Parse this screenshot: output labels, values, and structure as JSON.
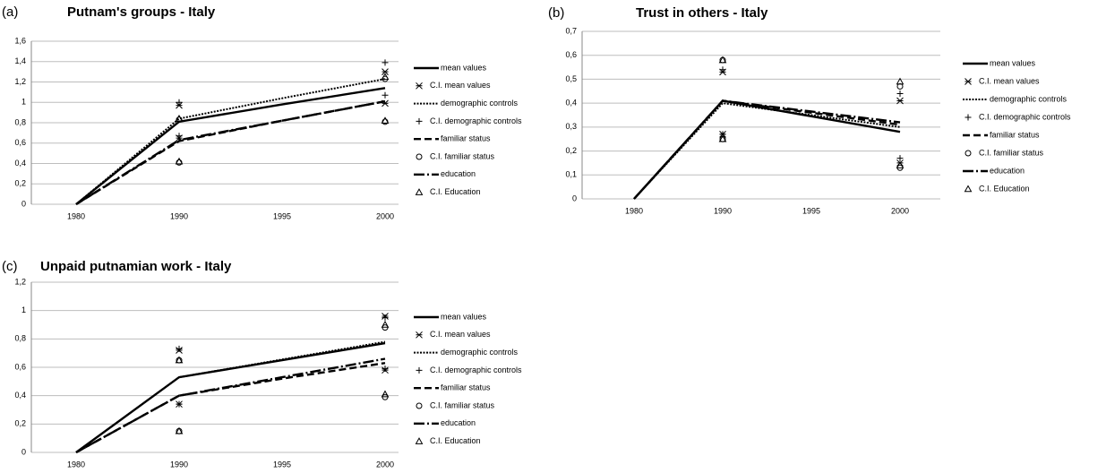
{
  "chart_data": [
    {
      "type": "line",
      "panel_label": "(a)",
      "title": "Putnam's groups - Italy",
      "categories": [
        "1980",
        "1990",
        "1995",
        "2000"
      ],
      "ylim": [
        0,
        1.6
      ],
      "yticks": [
        0,
        {
          "value": 0.2,
          "label": "0,2"
        },
        {
          "value": 0.4,
          "label": "0,4"
        },
        {
          "value": 0.6,
          "label": "0,6"
        },
        {
          "value": 0.8,
          "label": "0,8"
        },
        1,
        {
          "value": 1.2,
          "label": "1,2"
        },
        {
          "value": 1.4,
          "label": "1,4"
        },
        {
          "value": 1.6,
          "label": "1,6"
        }
      ],
      "grid": true,
      "series": [
        {
          "name": "mean values",
          "color": "#000000",
          "line": "solid",
          "values": [
            0,
            0.81,
            0.98,
            1.14
          ]
        },
        {
          "name": "C.I. mean values",
          "color": "#000000",
          "marker": "asterisk",
          "values": [
            null,
            0.97,
            null,
            1.3
          ],
          "lower": [
            null,
            0.65,
            null,
            0.99
          ]
        },
        {
          "name": "demographic controls",
          "color": "#000000",
          "line": "dotted",
          "values": [
            0,
            0.84,
            1.04,
            1.23
          ]
        },
        {
          "name": "C.I. demographic controls",
          "color": "#000000",
          "marker": "plus",
          "values": [
            null,
            1.0,
            null,
            1.39
          ],
          "lower": [
            null,
            0.67,
            null,
            1.07
          ]
        },
        {
          "name": "familiar status",
          "color": "#000000",
          "line": "dashed",
          "values": [
            0,
            0.62,
            0.82,
            1.01
          ]
        },
        {
          "name": "C.I. familiar status",
          "color": "#000000",
          "marker": "circle",
          "values": [
            null,
            0.83,
            null,
            1.23
          ],
          "lower": [
            null,
            0.41,
            null,
            0.81
          ]
        },
        {
          "name": "education",
          "color": "#000000",
          "line": "dashdot",
          "values": [
            0,
            0.63,
            0.82,
            1.01
          ]
        },
        {
          "name": "C.I. Education",
          "color": "#000000",
          "marker": "triangle",
          "values": [
            null,
            0.84,
            null,
            1.25
          ],
          "lower": [
            null,
            0.42,
            null,
            0.82
          ]
        }
      ]
    },
    {
      "type": "line",
      "panel_label": "(b)",
      "title": "Trust in others - Italy",
      "categories": [
        "1980",
        "1990",
        "1995",
        "2000"
      ],
      "ylim": [
        0,
        0.7
      ],
      "yticks": [
        0,
        {
          "value": 0.1,
          "label": "0,1"
        },
        {
          "value": 0.2,
          "label": "0,2"
        },
        {
          "value": 0.3,
          "label": "0,3"
        },
        {
          "value": 0.4,
          "label": "0,4"
        },
        {
          "value": 0.5,
          "label": "0,5"
        },
        {
          "value": 0.6,
          "label": "0,6"
        },
        {
          "value": 0.7,
          "label": "0,7"
        }
      ],
      "grid": true,
      "series": [
        {
          "name": "mean values",
          "color": "#000000",
          "line": "solid",
          "values": [
            0,
            0.41,
            0.345,
            0.28
          ]
        },
        {
          "name": "C.I. mean values",
          "color": "#000000",
          "marker": "asterisk",
          "values": [
            null,
            0.53,
            null,
            0.41
          ],
          "lower": [
            null,
            0.27,
            null,
            0.15
          ]
        },
        {
          "name": "demographic controls",
          "color": "#000000",
          "line": "dotted",
          "values": [
            0,
            0.4,
            0.35,
            0.3
          ]
        },
        {
          "name": "C.I. demographic controls",
          "color": "#000000",
          "marker": "plus",
          "values": [
            null,
            0.54,
            null,
            0.44
          ],
          "lower": [
            null,
            0.27,
            null,
            0.17
          ]
        },
        {
          "name": "familiar status",
          "color": "#000000",
          "line": "dashed",
          "values": [
            0,
            0.41,
            0.36,
            0.31
          ]
        },
        {
          "name": "C.I. familiar status",
          "color": "#000000",
          "marker": "circle",
          "values": [
            null,
            0.58,
            null,
            0.47
          ],
          "lower": [
            null,
            0.25,
            null,
            0.13
          ]
        },
        {
          "name": "education",
          "color": "#000000",
          "line": "dashdot",
          "values": [
            0,
            0.41,
            0.365,
            0.32
          ]
        },
        {
          "name": "C.I. Education",
          "color": "#000000",
          "marker": "triangle",
          "values": [
            null,
            0.58,
            null,
            0.49
          ],
          "lower": [
            null,
            0.25,
            null,
            0.14
          ]
        }
      ]
    },
    {
      "type": "line",
      "panel_label": "(c)",
      "title": "Unpaid putnamian work - Italy",
      "categories": [
        "1980",
        "1990",
        "1995",
        "2000"
      ],
      "ylim": [
        0,
        1.2
      ],
      "yticks": [
        0,
        {
          "value": 0.2,
          "label": "0,2"
        },
        {
          "value": 0.4,
          "label": "0,4"
        },
        {
          "value": 0.6,
          "label": "0,6"
        },
        {
          "value": 0.8,
          "label": "0,8"
        },
        1,
        {
          "value": 1.2,
          "label": "1,2"
        }
      ],
      "grid": true,
      "series": [
        {
          "name": "mean values",
          "color": "#000000",
          "line": "solid",
          "values": [
            0,
            0.53,
            0.65,
            0.77
          ]
        },
        {
          "name": "C.I. mean values",
          "color": "#000000",
          "marker": "asterisk",
          "values": [
            null,
            0.72,
            null,
            0.96
          ],
          "lower": [
            null,
            0.34,
            null,
            0.58
          ]
        },
        {
          "name": "demographic controls",
          "color": "#000000",
          "line": "dotted",
          "values": [
            0,
            0.53,
            0.655,
            0.78
          ]
        },
        {
          "name": "C.I. demographic controls",
          "color": "#000000",
          "marker": "plus",
          "values": [
            null,
            0.73,
            null,
            0.95
          ],
          "lower": [
            null,
            0.34,
            null,
            0.59
          ]
        },
        {
          "name": "familiar status",
          "color": "#000000",
          "line": "dashed",
          "values": [
            0,
            0.4,
            0.52,
            0.63
          ]
        },
        {
          "name": "C.I. familiar status",
          "color": "#000000",
          "marker": "circle",
          "values": [
            null,
            0.65,
            null,
            0.88
          ],
          "lower": [
            null,
            0.15,
            null,
            0.39
          ]
        },
        {
          "name": "education",
          "color": "#000000",
          "line": "dashdot",
          "values": [
            0,
            0.4,
            0.53,
            0.66
          ]
        },
        {
          "name": "C.I. Education",
          "color": "#000000",
          "marker": "triangle",
          "values": [
            null,
            0.65,
            null,
            0.9
          ],
          "lower": [
            null,
            0.15,
            null,
            0.41
          ]
        }
      ]
    }
  ]
}
